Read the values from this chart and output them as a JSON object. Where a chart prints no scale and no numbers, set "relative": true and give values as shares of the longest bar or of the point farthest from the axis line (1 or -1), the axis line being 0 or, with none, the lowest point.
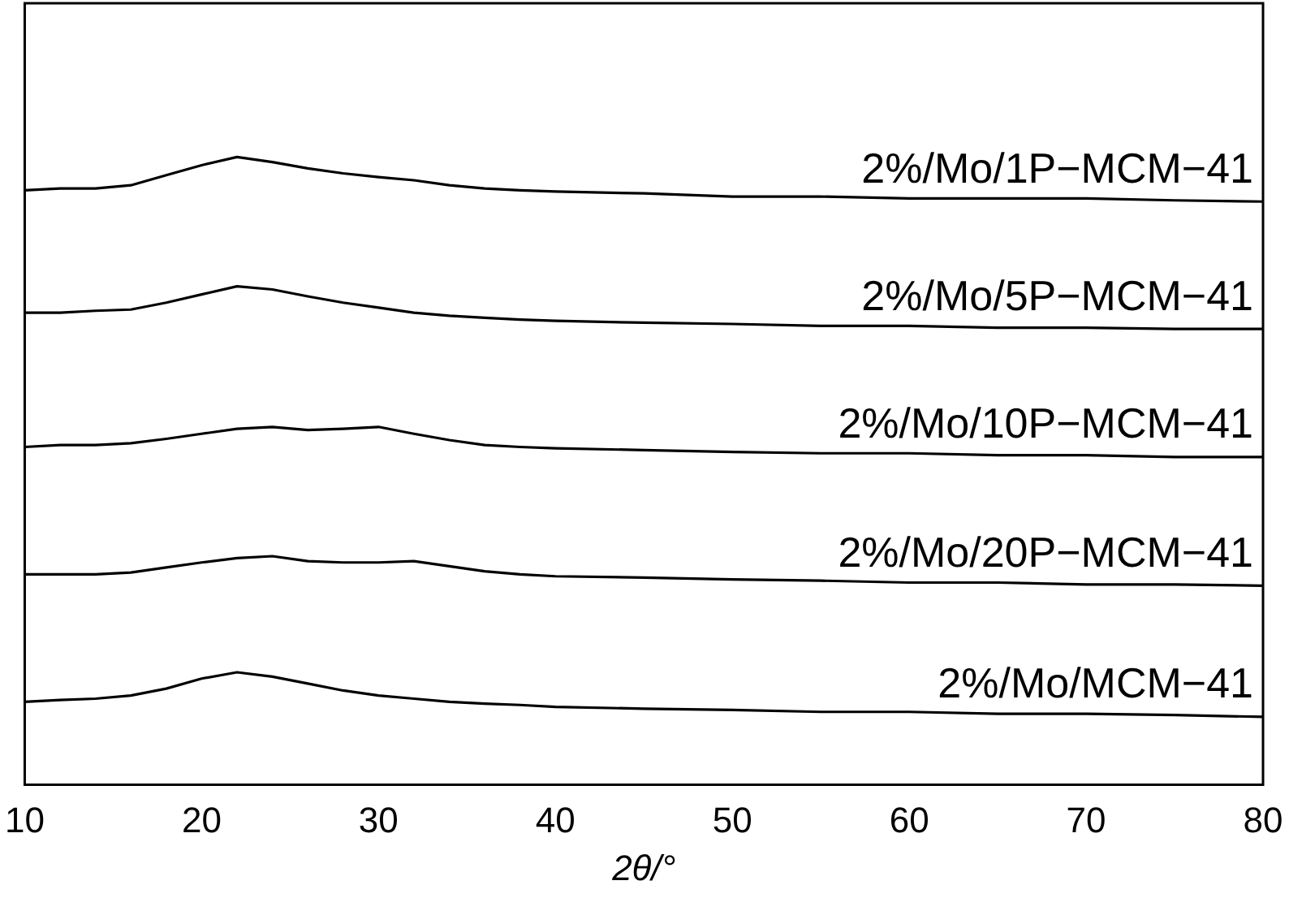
{
  "chart_data": {
    "type": "line",
    "relative": true,
    "xlabel": "2θ/°",
    "xlim": [
      10,
      80
    ],
    "xticks": [
      10,
      20,
      30,
      40,
      50,
      60,
      70,
      80
    ],
    "tick_labels": "x",
    "legend": false,
    "grid": false,
    "marker": "none",
    "line_style": "solid",
    "x": [
      10,
      12,
      14,
      16,
      18,
      20,
      22,
      24,
      26,
      28,
      30,
      32,
      34,
      36,
      38,
      40,
      45,
      50,
      55,
      60,
      65,
      70,
      75,
      80
    ],
    "series": [
      {
        "name": "2%/Mo/1P−MCM−41",
        "color": "#000000",
        "values": [
          0.947,
          0.95,
          0.95,
          0.955,
          0.971,
          0.987,
          1,
          0.992,
          0.982,
          0.974,
          0.968,
          0.963,
          0.955,
          0.95,
          0.947,
          0.945,
          0.942,
          0.937,
          0.937,
          0.934,
          0.934,
          0.934,
          0.931,
          0.929
        ]
      },
      {
        "name": "2%/Mo/5P−MCM−41",
        "color": "#000000",
        "values": [
          0.752,
          0.752,
          0.755,
          0.757,
          0.768,
          0.781,
          0.794,
          0.789,
          0.778,
          0.768,
          0.76,
          0.752,
          0.747,
          0.744,
          0.741,
          0.739,
          0.736,
          0.734,
          0.731,
          0.731,
          0.728,
          0.728,
          0.726,
          0.726
        ]
      },
      {
        "name": "2%/Mo/10P−MCM−41",
        "color": "#000000",
        "values": [
          0.538,
          0.541,
          0.541,
          0.544,
          0.551,
          0.559,
          0.567,
          0.57,
          0.565,
          0.567,
          0.57,
          0.559,
          0.549,
          0.541,
          0.538,
          0.536,
          0.533,
          0.53,
          0.528,
          0.528,
          0.525,
          0.525,
          0.522,
          0.522
        ]
      },
      {
        "name": "2%/Mo/20P−MCM−41",
        "color": "#000000",
        "values": [
          0.335,
          0.335,
          0.335,
          0.338,
          0.346,
          0.354,
          0.361,
          0.364,
          0.356,
          0.354,
          0.354,
          0.356,
          0.348,
          0.34,
          0.335,
          0.332,
          0.33,
          0.327,
          0.325,
          0.322,
          0.322,
          0.319,
          0.319,
          0.317
        ]
      },
      {
        "name": "2%/Mo/MCM−41",
        "color": "#000000",
        "values": [
          0.132,
          0.135,
          0.137,
          0.142,
          0.153,
          0.169,
          0.179,
          0.172,
          0.161,
          0.15,
          0.142,
          0.137,
          0.132,
          0.129,
          0.127,
          0.124,
          0.121,
          0.119,
          0.116,
          0.116,
          0.113,
          0.113,
          0.111,
          0.108
        ]
      }
    ]
  }
}
